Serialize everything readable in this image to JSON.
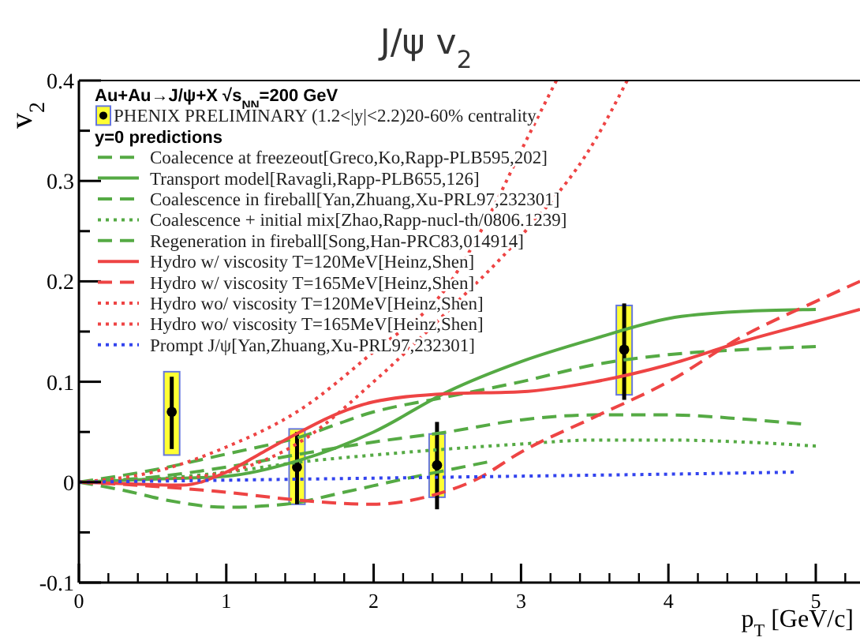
{
  "chart_data": {
    "type": "line",
    "title": "J/ψ v$_{2}$",
    "xlabel": "p$_{T}$  [GeV/c]",
    "ylabel": "v$_{2}$",
    "annotations": [
      "Au+Au→J/ψ+X √s$_{NN}$=200 GeV",
      "y=0 predictions"
    ],
    "xlim": [
      0,
      5.3
    ],
    "xticks": [
      0,
      1,
      2,
      3,
      4,
      5
    ],
    "ylim": [
      -0.1,
      0.4
    ],
    "yticks": [
      -0.1,
      0,
      0.1,
      0.2,
      0.3,
      0.4
    ],
    "grid": false,
    "legend": "top left",
    "series": [
      {
        "type": "bar",
        "color": "#ffff33",
        "x": [
          0.63,
          1.48,
          2.43,
          3.7
        ],
        "base": [
          0.027,
          -0.022,
          -0.015,
          0.087
        ],
        "values": [
          0.083,
          0.075,
          0.063,
          0.089
        ]
      },
      {
        "type": "scatter",
        "name": "PHENIX PRELIMINARY (1.2<|y|<2.2)20-60% centrality",
        "color": "#000000",
        "marker": "circle",
        "x": [
          0.63,
          1.48,
          2.43,
          3.7
        ],
        "values": [
          0.07,
          0.015,
          0.017,
          0.132
        ],
        "errors": [
          [
            0.033,
            0.105
          ],
          [
            -0.022,
            0.05
          ],
          [
            -0.027,
            0.06
          ],
          [
            0.082,
            0.178
          ]
        ]
      },
      {
        "name": "Coalecence at freezeout[Greco,Ko,Rapp-PLB595,202]",
        "color": "#55aa44",
        "line_style": "dashed",
        "x": [
          0,
          0.5,
          1,
          1.5,
          2,
          2.5,
          3,
          3.5,
          4,
          4.5,
          5
        ],
        "values": [
          0,
          0.012,
          0.028,
          0.045,
          0.07,
          0.085,
          0.1,
          0.117,
          0.127,
          0.132,
          0.135
        ]
      },
      {
        "name": "Transport model[Ravagli,Rapp-PLB655,126]",
        "color": "#55aa44",
        "line_style": "solid",
        "x": [
          0,
          0.5,
          1,
          1.5,
          2,
          2.5,
          3,
          3.5,
          4,
          4.5,
          5
        ],
        "values": [
          0,
          0.003,
          0.006,
          0.022,
          0.05,
          0.09,
          0.12,
          0.143,
          0.163,
          0.17,
          0.172
        ]
      },
      {
        "name": "Coalescence in fireball[Yan,Zhuang,Xu-PRL97,232301]",
        "color": "#55aa44",
        "line_style": "dashed",
        "x": [
          0,
          0.5,
          1,
          1.5,
          2,
          2.5,
          3,
          3.5,
          4,
          4.5,
          4.9
        ],
        "values": [
          0,
          0.005,
          0.015,
          0.028,
          0.04,
          0.05,
          0.062,
          0.067,
          0.067,
          0.063,
          0.058
        ]
      },
      {
        "name": "Coalescence + initial mix[Zhao,Rapp-nucl-th/0806.1239]",
        "color": "#55aa44",
        "line_style": "dotted",
        "x": [
          0,
          0.5,
          1,
          1.5,
          2,
          2.5,
          3,
          3.5,
          4,
          4.5,
          5
        ],
        "values": [
          0,
          0.003,
          0.01,
          0.02,
          0.027,
          0.033,
          0.038,
          0.042,
          0.042,
          0.04,
          0.036
        ]
      },
      {
        "name": "Regeneration in fireball[Song,Han-PRC83,014914]",
        "color": "#55aa44",
        "line_style": "dashed",
        "x": [
          0,
          0.3,
          0.6,
          1,
          1.4,
          1.8,
          2.2,
          2.5,
          2.77
        ],
        "values": [
          0,
          -0.008,
          -0.018,
          -0.025,
          -0.022,
          -0.01,
          0.003,
          0.012,
          0.02
        ]
      },
      {
        "name": "Hydro w/ viscosity T=120MeV[Heinz,Shen]",
        "color": "#ee4444",
        "line_style": "solid",
        "x": [
          0,
          0.4,
          0.7,
          1,
          1.25,
          1.5,
          1.75,
          2,
          2.5,
          3,
          3.5,
          4,
          4.5,
          5,
          5.3
        ],
        "values": [
          0,
          -0.002,
          -0.003,
          0.01,
          0.03,
          0.05,
          0.068,
          0.08,
          0.088,
          0.09,
          0.1,
          0.117,
          0.14,
          0.16,
          0.172
        ]
      },
      {
        "name": "Hydro w/ viscosity T=165MeV[Heinz,Shen]",
        "color": "#ee4444",
        "line_style": "dashed",
        "x": [
          0,
          0.5,
          1,
          1.5,
          2,
          2.4,
          2.7,
          3,
          3.5,
          4,
          4.5,
          5,
          5.3
        ],
        "values": [
          0,
          -0.004,
          -0.01,
          -0.018,
          -0.022,
          -0.013,
          0.003,
          0.03,
          0.065,
          0.1,
          0.145,
          0.18,
          0.2
        ]
      },
      {
        "name": "Hydro wo/ viscosity T=120MeV[Heinz,Shen]",
        "color": "#ee4444",
        "line_style": "dotted",
        "x": [
          0,
          0.5,
          1,
          1.5,
          2,
          2.5,
          3,
          3.5,
          3.72
        ],
        "values": [
          0,
          0.002,
          0.01,
          0.04,
          0.1,
          0.17,
          0.245,
          0.34,
          0.4
        ]
      },
      {
        "name": "Hydro wo/ viscosity T=165MeV[Heinz,Shen]",
        "color": "#ee4444",
        "line_style": "dotted",
        "x": [
          0,
          0.5,
          1,
          1.5,
          2,
          2.5,
          2.8,
          3,
          3.24
        ],
        "values": [
          0,
          0.01,
          0.035,
          0.072,
          0.13,
          0.195,
          0.27,
          0.33,
          0.4
        ]
      },
      {
        "name": "Prompt J/ψ[Yan,Zhuang,Xu-PRL97,232301]",
        "color": "#3344ee",
        "line_style": "dotted",
        "x": [
          0,
          1,
          2,
          3,
          4,
          4.85
        ],
        "values": [
          0,
          0.002,
          0.004,
          0.006,
          0.008,
          0.01
        ]
      }
    ]
  }
}
